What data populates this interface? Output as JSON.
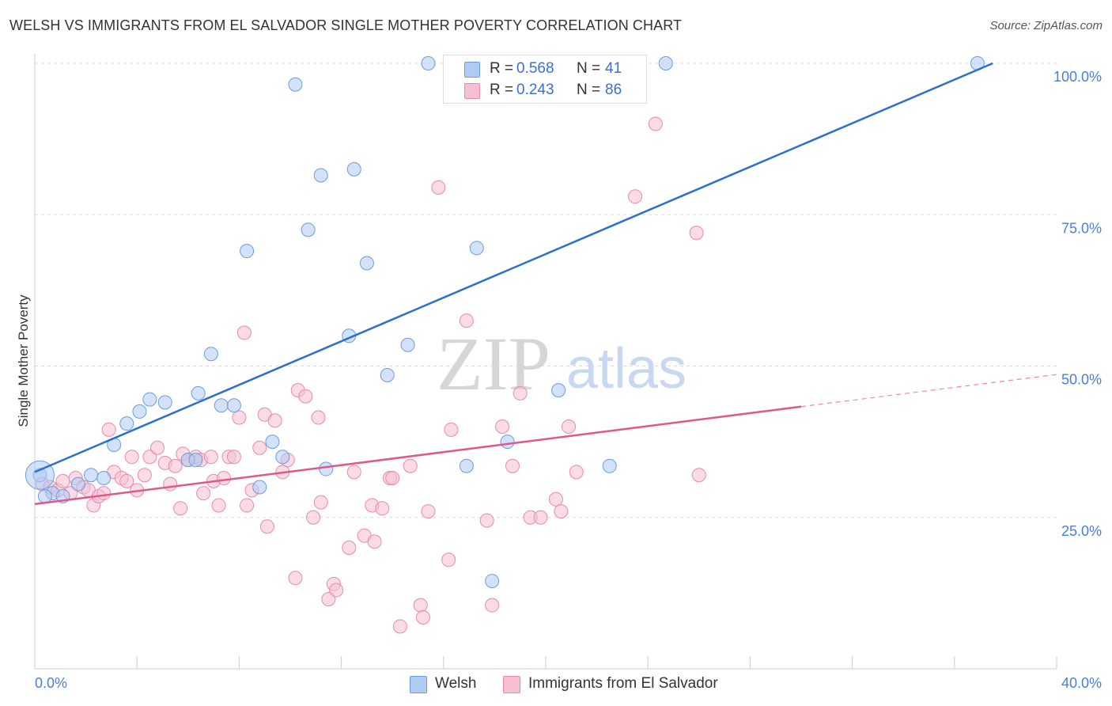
{
  "title": "WELSH VS IMMIGRANTS FROM EL SALVADOR SINGLE MOTHER POVERTY CORRELATION CHART",
  "source": "Source: ZipAtlas.com",
  "watermark": {
    "zip": "ZIP",
    "atlas": "atlas"
  },
  "legend": {
    "rows": [
      {
        "r_label": "R =",
        "r_value": "0.568",
        "n_label": "N =",
        "n_value": "41",
        "color": "#aecbf2"
      },
      {
        "r_label": "R =",
        "r_value": "0.243",
        "n_label": "N =",
        "n_value": "86",
        "color": "#f7bfd2"
      }
    ]
  },
  "bottom_legend": [
    {
      "label": "Welsh",
      "color": "#aecbf2"
    },
    {
      "label": "Immigrants from El Salvador",
      "color": "#f7bfd2"
    }
  ],
  "chart_data": {
    "type": "scatter",
    "title": "WELSH VS IMMIGRANTS FROM EL SALVADOR SINGLE MOTHER POVERTY CORRELATION CHART",
    "xlabel": "",
    "ylabel": "Single Mother Poverty",
    "xlim": [
      0,
      40
    ],
    "ylim": [
      0,
      100
    ],
    "x_tick_labels": [
      "0.0%",
      "40.0%"
    ],
    "y_tick_labels": [
      "25.0%",
      "50.0%",
      "75.0%",
      "100.0%"
    ],
    "y_ticks": [
      25,
      50,
      75,
      100
    ],
    "grid": true,
    "legend_position": "top-center",
    "series": [
      {
        "name": "Welsh",
        "color": "#aecbf2",
        "stroke": "#6a9de0",
        "line_color": "#2a6fcf",
        "trend": {
          "x": [
            0,
            37.5
          ],
          "y": [
            32.5,
            100
          ]
        },
        "points": [
          [
            0.2,
            32
          ],
          [
            0.7,
            29
          ],
          [
            1.7,
            30.5
          ],
          [
            2.2,
            32
          ],
          [
            2.7,
            31.5
          ],
          [
            3.1,
            37
          ],
          [
            3.6,
            40.5
          ],
          [
            4.1,
            42.5
          ],
          [
            4.5,
            44.5
          ],
          [
            5.1,
            44
          ],
          [
            6.0,
            34.5
          ],
          [
            6.3,
            34.5
          ],
          [
            6.4,
            45.5
          ],
          [
            6.9,
            52
          ],
          [
            7.3,
            43.5
          ],
          [
            7.8,
            43.5
          ],
          [
            8.3,
            69
          ],
          [
            8.8,
            30
          ],
          [
            9.3,
            37.5
          ],
          [
            9.7,
            35
          ],
          [
            10.2,
            96.5
          ],
          [
            10.7,
            72.5
          ],
          [
            11.2,
            81.5
          ],
          [
            11.4,
            33
          ],
          [
            12.3,
            55
          ],
          [
            12.5,
            82.5
          ],
          [
            13.0,
            67
          ],
          [
            13.8,
            48.5
          ],
          [
            14.6,
            53.5
          ],
          [
            15.4,
            100
          ],
          [
            16.9,
            33.5
          ],
          [
            17.3,
            69.5
          ],
          [
            17.9,
            14.5
          ],
          [
            18.5,
            37.5
          ],
          [
            19.9,
            100
          ],
          [
            20.5,
            46
          ],
          [
            22.5,
            33.5
          ],
          [
            24.7,
            100
          ],
          [
            36.9,
            100
          ],
          [
            0.4,
            28.5
          ],
          [
            1.1,
            28.5
          ]
        ]
      },
      {
        "name": "Immigrants from El Salvador",
        "color": "#f7bfd2",
        "stroke": "#e88aab",
        "line_color": "#e0588a",
        "trend": {
          "x": [
            0,
            30
          ],
          "y": [
            27.2,
            43.3
          ]
        },
        "trend_dashed": {
          "x": [
            30,
            40
          ],
          "y": [
            43.3,
            48.6
          ]
        },
        "points": [
          [
            0.3,
            30.5
          ],
          [
            0.6,
            30
          ],
          [
            0.9,
            29.5
          ],
          [
            1.1,
            31
          ],
          [
            1.4,
            29
          ],
          [
            1.6,
            31.5
          ],
          [
            1.9,
            30
          ],
          [
            2.1,
            29.5
          ],
          [
            2.3,
            27
          ],
          [
            2.5,
            28.5
          ],
          [
            2.7,
            29
          ],
          [
            2.9,
            39.5
          ],
          [
            3.1,
            32.5
          ],
          [
            3.4,
            31.5
          ],
          [
            3.6,
            31
          ],
          [
            3.8,
            35
          ],
          [
            4.0,
            29.5
          ],
          [
            4.3,
            32
          ],
          [
            4.5,
            35
          ],
          [
            4.8,
            36.5
          ],
          [
            5.1,
            34
          ],
          [
            5.3,
            30.5
          ],
          [
            5.5,
            33.5
          ],
          [
            5.8,
            35.5
          ],
          [
            5.7,
            26.5
          ],
          [
            6.0,
            34.5
          ],
          [
            6.3,
            35
          ],
          [
            6.5,
            34.5
          ],
          [
            6.6,
            29
          ],
          [
            6.9,
            35
          ],
          [
            7.0,
            31
          ],
          [
            7.2,
            27
          ],
          [
            7.4,
            31.5
          ],
          [
            7.6,
            35
          ],
          [
            7.8,
            35
          ],
          [
            8.0,
            41.5
          ],
          [
            8.2,
            55.5
          ],
          [
            8.3,
            27
          ],
          [
            8.5,
            29.5
          ],
          [
            8.8,
            36.5
          ],
          [
            9.0,
            42
          ],
          [
            9.1,
            23.5
          ],
          [
            9.4,
            41
          ],
          [
            9.7,
            32.5
          ],
          [
            9.9,
            34.5
          ],
          [
            10.2,
            15
          ],
          [
            10.3,
            46
          ],
          [
            10.6,
            45
          ],
          [
            10.9,
            25
          ],
          [
            11.1,
            41.5
          ],
          [
            11.2,
            27.5
          ],
          [
            11.5,
            11.5
          ],
          [
            11.7,
            14
          ],
          [
            11.8,
            13
          ],
          [
            12.3,
            20
          ],
          [
            12.5,
            32.5
          ],
          [
            12.9,
            22
          ],
          [
            13.2,
            27
          ],
          [
            13.3,
            21
          ],
          [
            13.6,
            26.5
          ],
          [
            13.9,
            31.5
          ],
          [
            14.0,
            31.5
          ],
          [
            14.3,
            7
          ],
          [
            14.7,
            33.5
          ],
          [
            15.1,
            10.5
          ],
          [
            15.2,
            8.5
          ],
          [
            15.4,
            26
          ],
          [
            15.8,
            79.5
          ],
          [
            16.2,
            18
          ],
          [
            16.3,
            39.5
          ],
          [
            16.9,
            57.5
          ],
          [
            17.7,
            24.5
          ],
          [
            17.9,
            10.5
          ],
          [
            18.3,
            40
          ],
          [
            19.0,
            45.5
          ],
          [
            19.4,
            25
          ],
          [
            19.8,
            25
          ],
          [
            20.4,
            28
          ],
          [
            20.6,
            26
          ],
          [
            20.9,
            40
          ],
          [
            21.2,
            32.5
          ],
          [
            23.5,
            78
          ],
          [
            24.3,
            90
          ],
          [
            25.9,
            72
          ],
          [
            26.0,
            32
          ],
          [
            18.7,
            33.5
          ]
        ]
      }
    ]
  }
}
